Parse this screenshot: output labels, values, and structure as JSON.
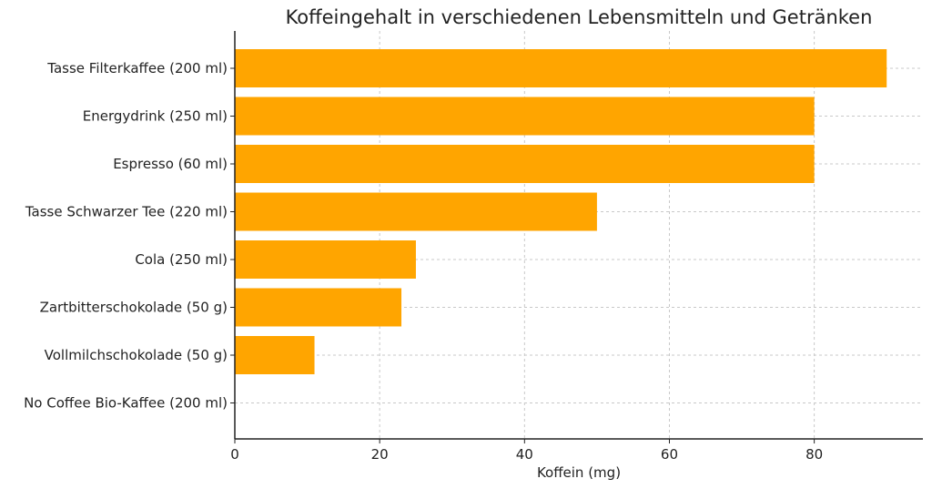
{
  "chart_data": {
    "type": "bar",
    "orientation": "horizontal",
    "title": "Koffeingehalt in verschiedenen Lebensmitteln und Getränken",
    "xlabel": "Koffein (mg)",
    "ylabel": "",
    "categories": [
      "Tasse Filterkaffee (200 ml)",
      "Energydrink (250 ml)",
      "Espresso (60 ml)",
      "Tasse Schwarzer Tee (220 ml)",
      "Cola (250 ml)",
      "Zartbitterschokolade (50 g)",
      "Vollmilchschokolade (50 g)",
      "No Coffee Bio-Kaffee (200 ml)"
    ],
    "values": [
      90,
      80,
      80,
      50,
      25,
      23,
      11,
      0
    ],
    "xlim": [
      0,
      95
    ],
    "xticks": [
      0,
      20,
      40,
      60,
      80
    ],
    "grid": true,
    "bar_color": "#FFA500"
  }
}
